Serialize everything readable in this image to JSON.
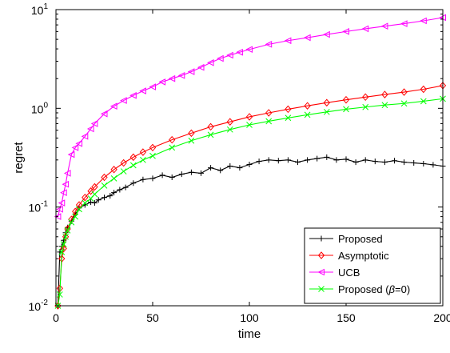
{
  "chart_data": {
    "type": "line",
    "xlabel": "time",
    "ylabel": "regret",
    "xlim": [
      0,
      200
    ],
    "ylim": [
      0.01,
      10
    ],
    "yscale": "log",
    "grid": false,
    "legend_position": "bottom-right",
    "x_ticks": [
      0,
      50,
      100,
      150,
      200
    ],
    "y_ticks": [
      {
        "value": 0.01,
        "base": "10",
        "exp": "-2"
      },
      {
        "value": 0.1,
        "base": "10",
        "exp": "-1"
      },
      {
        "value": 1,
        "base": "10",
        "exp": "0"
      },
      {
        "value": 10,
        "base": "10",
        "exp": "1"
      }
    ],
    "series": [
      {
        "name": "Proposed",
        "color": "#000000",
        "marker": "plus",
        "x": [
          1,
          2,
          3,
          4,
          5,
          6,
          8,
          10,
          12,
          15,
          18,
          20,
          22,
          25,
          28,
          30,
          33,
          36,
          40,
          45,
          50,
          55,
          60,
          65,
          70,
          75,
          80,
          85,
          90,
          95,
          100,
          105,
          110,
          115,
          120,
          125,
          130,
          135,
          140,
          145,
          150,
          155,
          160,
          165,
          170,
          175,
          180,
          185,
          190,
          195,
          200
        ],
        "values": [
          0.01,
          0.035,
          0.04,
          0.046,
          0.055,
          0.062,
          0.072,
          0.085,
          0.098,
          0.105,
          0.112,
          0.11,
          0.118,
          0.125,
          0.13,
          0.14,
          0.15,
          0.158,
          0.175,
          0.19,
          0.195,
          0.21,
          0.2,
          0.215,
          0.225,
          0.22,
          0.25,
          0.235,
          0.26,
          0.25,
          0.27,
          0.29,
          0.3,
          0.295,
          0.3,
          0.285,
          0.3,
          0.31,
          0.32,
          0.3,
          0.305,
          0.285,
          0.3,
          0.29,
          0.285,
          0.295,
          0.285,
          0.28,
          0.275,
          0.268,
          0.26
        ]
      },
      {
        "name": "Asymptotic",
        "color": "#ff0000",
        "marker": "diamond",
        "x": [
          1,
          2,
          3,
          4,
          5,
          6,
          8,
          10,
          12,
          15,
          18,
          20,
          25,
          30,
          35,
          40,
          45,
          50,
          60,
          70,
          80,
          90,
          100,
          110,
          120,
          130,
          140,
          150,
          160,
          170,
          180,
          190,
          200
        ],
        "values": [
          0.01,
          0.015,
          0.03,
          0.038,
          0.05,
          0.06,
          0.075,
          0.09,
          0.105,
          0.125,
          0.145,
          0.16,
          0.2,
          0.24,
          0.28,
          0.32,
          0.36,
          0.4,
          0.48,
          0.56,
          0.65,
          0.73,
          0.82,
          0.9,
          0.98,
          1.06,
          1.14,
          1.22,
          1.3,
          1.38,
          1.46,
          1.56,
          1.7
        ]
      },
      {
        "name": "UCB",
        "color": "#ff00ff",
        "marker": "triangle-left",
        "x": [
          1,
          2,
          3,
          4,
          5,
          6,
          8,
          10,
          12,
          15,
          18,
          20,
          25,
          30,
          35,
          40,
          45,
          50,
          55,
          60,
          65,
          70,
          75,
          80,
          85,
          90,
          95,
          100,
          110,
          120,
          130,
          140,
          150,
          160,
          170,
          180,
          190,
          200
        ],
        "values": [
          0.08,
          0.095,
          0.11,
          0.14,
          0.17,
          0.22,
          0.34,
          0.4,
          0.44,
          0.52,
          0.62,
          0.7,
          0.88,
          1.05,
          1.2,
          1.35,
          1.5,
          1.65,
          1.85,
          2.0,
          2.15,
          2.35,
          2.6,
          2.9,
          3.2,
          3.45,
          3.7,
          3.95,
          4.45,
          4.85,
          5.2,
          5.6,
          6.0,
          6.4,
          6.8,
          7.2,
          7.7,
          8.3
        ]
      },
      {
        "name": "Proposed (β=0)",
        "color": "#00ff00",
        "marker": "x",
        "x": [
          1,
          2,
          3,
          4,
          5,
          6,
          8,
          10,
          12,
          15,
          18,
          20,
          25,
          30,
          35,
          40,
          45,
          50,
          60,
          70,
          80,
          90,
          100,
          110,
          120,
          130,
          140,
          150,
          160,
          170,
          180,
          190,
          200
        ],
        "values": [
          0.01,
          0.013,
          0.035,
          0.042,
          0.05,
          0.058,
          0.07,
          0.08,
          0.095,
          0.11,
          0.122,
          0.135,
          0.165,
          0.195,
          0.23,
          0.265,
          0.3,
          0.33,
          0.4,
          0.47,
          0.54,
          0.61,
          0.68,
          0.74,
          0.8,
          0.86,
          0.92,
          0.98,
          1.03,
          1.08,
          1.12,
          1.18,
          1.25
        ]
      }
    ]
  },
  "legend_items": [
    {
      "label": "Proposed"
    },
    {
      "label": "Asymptotic"
    },
    {
      "label": "UCB"
    },
    {
      "label_prefix": "Proposed (",
      "label_symbol": "β",
      "label_suffix": "=0)"
    }
  ]
}
